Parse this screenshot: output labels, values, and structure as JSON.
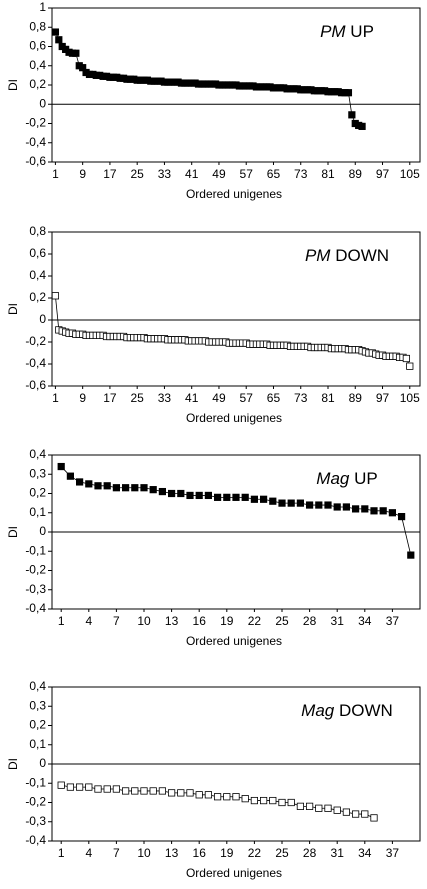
{
  "chart_data": [
    {
      "type": "line",
      "title": [
        "PM",
        "UP"
      ],
      "x_label": "Ordered unigenes",
      "y_label": "DI",
      "xlim": [
        0,
        108
      ],
      "xticks": [
        1,
        9,
        17,
        25,
        33,
        41,
        49,
        57,
        65,
        73,
        81,
        89,
        97,
        105
      ],
      "ylim": [
        -0.6,
        1
      ],
      "yticks": [
        {
          "value": -0.6,
          "label": "-0,6"
        },
        {
          "value": -0.4,
          "label": "-0,4"
        },
        {
          "value": -0.2,
          "label": "-0,2"
        },
        0,
        {
          "value": 0.2,
          "label": "0,2"
        },
        {
          "value": 0.4,
          "label": "0,4"
        },
        {
          "value": 0.6,
          "label": "0,6"
        },
        {
          "value": 0.8,
          "label": "0,8"
        },
        1
      ],
      "series": [
        {
          "color": "#000000",
          "marker_fill": "#000000",
          "x": [
            1,
            2,
            3,
            4,
            5,
            6,
            7,
            8,
            9,
            10,
            11,
            12,
            13,
            14,
            15,
            16,
            17,
            18,
            19,
            20,
            21,
            22,
            23,
            24,
            25,
            26,
            27,
            28,
            29,
            30,
            31,
            32,
            33,
            34,
            35,
            36,
            37,
            38,
            39,
            40,
            41,
            42,
            43,
            44,
            45,
            46,
            47,
            48,
            49,
            50,
            51,
            52,
            53,
            54,
            55,
            56,
            57,
            58,
            59,
            60,
            61,
            62,
            63,
            64,
            65,
            66,
            67,
            68,
            69,
            70,
            71,
            72,
            73,
            74,
            75,
            76,
            77,
            78,
            79,
            80,
            81,
            82,
            83,
            84,
            85,
            86,
            87,
            88,
            89,
            90,
            91
          ],
          "values": [
            0.75,
            0.67,
            0.6,
            0.57,
            0.54,
            0.53,
            0.53,
            0.4,
            0.38,
            0.33,
            0.31,
            0.31,
            0.3,
            0.3,
            0.29,
            0.29,
            0.28,
            0.28,
            0.28,
            0.27,
            0.27,
            0.26,
            0.26,
            0.26,
            0.25,
            0.25,
            0.25,
            0.25,
            0.24,
            0.24,
            0.24,
            0.24,
            0.23,
            0.23,
            0.23,
            0.23,
            0.23,
            0.22,
            0.22,
            0.22,
            0.22,
            0.22,
            0.21,
            0.21,
            0.21,
            0.21,
            0.21,
            0.21,
            0.2,
            0.2,
            0.2,
            0.2,
            0.2,
            0.2,
            0.19,
            0.19,
            0.19,
            0.19,
            0.19,
            0.18,
            0.18,
            0.18,
            0.18,
            0.18,
            0.17,
            0.17,
            0.17,
            0.17,
            0.16,
            0.16,
            0.16,
            0.16,
            0.15,
            0.15,
            0.15,
            0.15,
            0.14,
            0.14,
            0.14,
            0.14,
            0.13,
            0.13,
            0.13,
            0.13,
            0.12,
            0.12,
            0.12,
            -0.11,
            -0.2,
            -0.22,
            -0.23
          ]
        }
      ]
    },
    {
      "type": "line",
      "title": [
        "PM",
        "DOWN"
      ],
      "x_label": "Ordered unigenes",
      "y_label": "DI",
      "xlim": [
        0,
        108
      ],
      "xticks": [
        1,
        9,
        17,
        25,
        33,
        41,
        49,
        57,
        65,
        73,
        81,
        89,
        97,
        105
      ],
      "ylim": [
        -0.6,
        0.8
      ],
      "yticks": [
        {
          "value": -0.6,
          "label": "-0,6"
        },
        {
          "value": -0.4,
          "label": "-0,4"
        },
        {
          "value": -0.2,
          "label": "-0,2"
        },
        0,
        {
          "value": 0.2,
          "label": "0,2"
        },
        {
          "value": 0.4,
          "label": "0,4"
        },
        {
          "value": 0.6,
          "label": "0,6"
        },
        {
          "value": 0.8,
          "label": "0,8"
        }
      ],
      "series": [
        {
          "color": "#000000",
          "marker_fill": "#ffffff",
          "x": [
            1,
            2,
            3,
            4,
            5,
            6,
            7,
            8,
            9,
            10,
            11,
            12,
            13,
            14,
            15,
            16,
            17,
            18,
            19,
            20,
            21,
            22,
            23,
            24,
            25,
            26,
            27,
            28,
            29,
            30,
            31,
            32,
            33,
            34,
            35,
            36,
            37,
            38,
            39,
            40,
            41,
            42,
            43,
            44,
            45,
            46,
            47,
            48,
            49,
            50,
            51,
            52,
            53,
            54,
            55,
            56,
            57,
            58,
            59,
            60,
            61,
            62,
            63,
            64,
            65,
            66,
            67,
            68,
            69,
            70,
            71,
            72,
            73,
            74,
            75,
            76,
            77,
            78,
            79,
            80,
            81,
            82,
            83,
            84,
            85,
            86,
            87,
            88,
            89,
            90,
            91,
            92,
            93,
            94,
            95,
            96,
            97,
            98,
            99,
            100,
            101,
            102,
            103,
            104,
            105
          ],
          "values": [
            0.22,
            -0.09,
            -0.1,
            -0.11,
            -0.12,
            -0.12,
            -0.13,
            -0.13,
            -0.13,
            -0.14,
            -0.14,
            -0.14,
            -0.14,
            -0.14,
            -0.14,
            -0.15,
            -0.15,
            -0.15,
            -0.15,
            -0.15,
            -0.15,
            -0.16,
            -0.16,
            -0.16,
            -0.16,
            -0.16,
            -0.16,
            -0.17,
            -0.17,
            -0.17,
            -0.17,
            -0.17,
            -0.17,
            -0.18,
            -0.18,
            -0.18,
            -0.18,
            -0.18,
            -0.18,
            -0.19,
            -0.19,
            -0.19,
            -0.19,
            -0.19,
            -0.19,
            -0.2,
            -0.2,
            -0.2,
            -0.2,
            -0.2,
            -0.2,
            -0.21,
            -0.21,
            -0.21,
            -0.21,
            -0.21,
            -0.21,
            -0.22,
            -0.22,
            -0.22,
            -0.22,
            -0.22,
            -0.22,
            -0.23,
            -0.23,
            -0.23,
            -0.23,
            -0.23,
            -0.23,
            -0.24,
            -0.24,
            -0.24,
            -0.24,
            -0.24,
            -0.24,
            -0.25,
            -0.25,
            -0.25,
            -0.25,
            -0.25,
            -0.25,
            -0.26,
            -0.26,
            -0.26,
            -0.26,
            -0.26,
            -0.27,
            -0.27,
            -0.27,
            -0.27,
            -0.28,
            -0.29,
            -0.3,
            -0.3,
            -0.31,
            -0.32,
            -0.32,
            -0.33,
            -0.33,
            -0.33,
            -0.33,
            -0.34,
            -0.34,
            -0.35,
            -0.42
          ]
        }
      ]
    },
    {
      "type": "line",
      "title": [
        "Mag",
        "UP"
      ],
      "x_label": "Ordered unigenes",
      "y_label": "DI",
      "xlim": [
        0,
        40
      ],
      "xticks": [
        1,
        4,
        7,
        10,
        13,
        16,
        19,
        22,
        25,
        28,
        31,
        34,
        37
      ],
      "ylim": [
        -0.4,
        0.4
      ],
      "yticks": [
        {
          "value": -0.4,
          "label": "-0,4"
        },
        {
          "value": -0.3,
          "label": "-0,3"
        },
        {
          "value": -0.2,
          "label": "-0,2"
        },
        {
          "value": -0.1,
          "label": "-0,1"
        },
        0,
        {
          "value": 0.1,
          "label": "0,1"
        },
        {
          "value": 0.2,
          "label": "0,2"
        },
        {
          "value": 0.3,
          "label": "0,3"
        },
        {
          "value": 0.4,
          "label": "0,4"
        }
      ],
      "series": [
        {
          "color": "#000000",
          "marker_fill": "#000000",
          "x": [
            1,
            2,
            3,
            4,
            5,
            6,
            7,
            8,
            9,
            10,
            11,
            12,
            13,
            14,
            15,
            16,
            17,
            18,
            19,
            20,
            21,
            22,
            23,
            24,
            25,
            26,
            27,
            28,
            29,
            30,
            31,
            32,
            33,
            34,
            35,
            36,
            37,
            38,
            39
          ],
          "values": [
            0.34,
            0.29,
            0.26,
            0.25,
            0.24,
            0.24,
            0.23,
            0.23,
            0.23,
            0.23,
            0.22,
            0.21,
            0.2,
            0.2,
            0.19,
            0.19,
            0.19,
            0.18,
            0.18,
            0.18,
            0.18,
            0.17,
            0.17,
            0.16,
            0.15,
            0.15,
            0.15,
            0.14,
            0.14,
            0.14,
            0.13,
            0.13,
            0.12,
            0.12,
            0.11,
            0.11,
            0.1,
            0.08,
            -0.12
          ]
        }
      ]
    },
    {
      "type": "line",
      "title": [
        "Mag",
        "DOWN"
      ],
      "x_label": "Ordered unigenes",
      "y_label": "DI",
      "xlim": [
        0,
        40
      ],
      "xticks": [
        1,
        4,
        7,
        10,
        13,
        16,
        19,
        22,
        25,
        28,
        31,
        34,
        37
      ],
      "ylim": [
        -0.4,
        0.4
      ],
      "yticks": [
        {
          "value": -0.4,
          "label": "-0,4"
        },
        {
          "value": -0.3,
          "label": "-0,3"
        },
        {
          "value": -0.2,
          "label": "-0,2"
        },
        {
          "value": -0.1,
          "label": "-0,1"
        },
        0,
        {
          "value": 0.1,
          "label": "0,1"
        },
        {
          "value": 0.2,
          "label": "0,2"
        },
        {
          "value": 0.3,
          "label": "0,3"
        },
        {
          "value": 0.4,
          "label": "0,4"
        }
      ],
      "series": [
        {
          "color": "#000000",
          "marker_fill": "#ffffff",
          "x": [
            1,
            2,
            3,
            4,
            5,
            6,
            7,
            8,
            9,
            10,
            11,
            12,
            13,
            14,
            15,
            16,
            17,
            18,
            19,
            20,
            21,
            22,
            23,
            24,
            25,
            26,
            27,
            28,
            29,
            30,
            31,
            32,
            33,
            34,
            35
          ],
          "values": [
            -0.11,
            -0.12,
            -0.12,
            -0.12,
            -0.13,
            -0.13,
            -0.13,
            -0.14,
            -0.14,
            -0.14,
            -0.14,
            -0.14,
            -0.15,
            -0.15,
            -0.15,
            -0.16,
            -0.16,
            -0.17,
            -0.17,
            -0.17,
            -0.18,
            -0.19,
            -0.19,
            -0.19,
            -0.2,
            -0.2,
            -0.22,
            -0.22,
            -0.23,
            -0.23,
            -0.24,
            -0.25,
            -0.26,
            -0.26,
            -0.28
          ]
        }
      ]
    }
  ]
}
